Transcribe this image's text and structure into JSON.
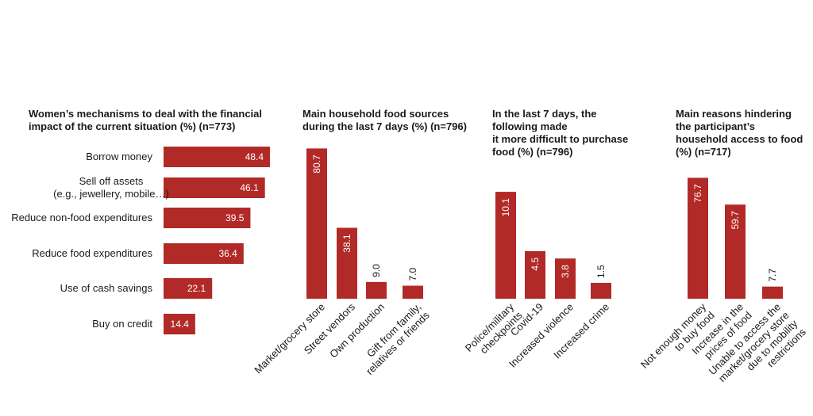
{
  "colors": {
    "bar": "#b22a27"
  },
  "chart_data": [
    {
      "type": "bar",
      "orientation": "horizontal",
      "title": "Women’s mechanisms to deal with the financial\n impact of the current situation (%) (n=773)",
      "categories": [
        "Borrow money",
        "Sell off assets\n(e.g., jewellery, mobile…)",
        "Reduce non-food expenditures",
        "Reduce food expenditures",
        "Use of cash savings",
        "Buy on credit"
      ],
      "values": [
        48.4,
        46.1,
        39.5,
        36.4,
        22.1,
        14.4
      ],
      "value_labels": [
        "48.4",
        "46.1",
        "39.5",
        "36.4",
        "22.1",
        "14.4"
      ]
    },
    {
      "type": "bar",
      "title": "Main household food sources\nduring the last 7 days (%) (n=796)",
      "categories": [
        "Market/grocery store",
        "Street vendors",
        "Own production",
        "Gift from family,\nrelatives or friends"
      ],
      "values": [
        80.7,
        38.1,
        9.0,
        7.0
      ],
      "value_labels": [
        "80.7",
        "38.1",
        "9.0",
        "7.0"
      ]
    },
    {
      "type": "bar",
      "title": "In the last 7 days, the\nfollowing made\n it more difficult to purchase\nfood (%) (n=796)",
      "categories": [
        "Police/military\ncheckpoints",
        "Covid-19",
        "Increased violence",
        "Increased crime"
      ],
      "values": [
        10.1,
        4.5,
        3.8,
        1.5
      ],
      "value_labels": [
        "10.1",
        "4.5",
        "3.8",
        "1.5"
      ]
    },
    {
      "type": "bar",
      "title": "Main reasons hindering\nthe participant’s\nhousehold access to food\n(%) (n=717)",
      "categories": [
        "Not enough money\nto buy food",
        "Increase in the\nprices of food",
        "Unable to access the\nmarket/grocery store\ndue to mobility\nrestrictions"
      ],
      "values": [
        76.7,
        59.7,
        7.7
      ],
      "value_labels": [
        "76.7",
        "59.7",
        "7.7"
      ]
    }
  ]
}
